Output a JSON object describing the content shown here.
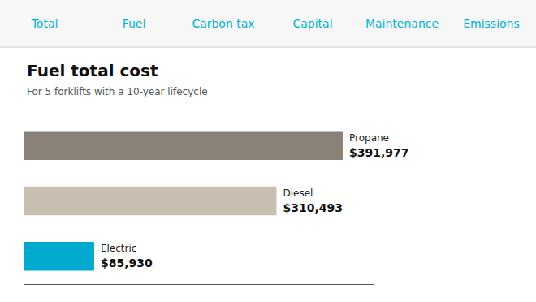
{
  "chart_data": {
    "type": "bar",
    "orientation": "horizontal",
    "title": "Fuel total cost",
    "subtitle": "For 5 forklifts with a 10-year lifecycle",
    "annotations": [
      "Total",
      "Fuel",
      "Carbon tax",
      "Capital",
      "Maintenance",
      "Emissions"
    ],
    "categories": [
      "Propane",
      "Diesel",
      "Electric"
    ],
    "values": [
      391977,
      310493,
      85930
    ],
    "value_labels": [
      "$391,977",
      "$310,493",
      "$85,930"
    ],
    "colors": [
      "#8a8178",
      "#c8bfb0",
      "#00aacf"
    ],
    "xlim": [
      0,
      430000
    ],
    "data_labels": true,
    "tick_labels": false,
    "grid": false
  }
}
